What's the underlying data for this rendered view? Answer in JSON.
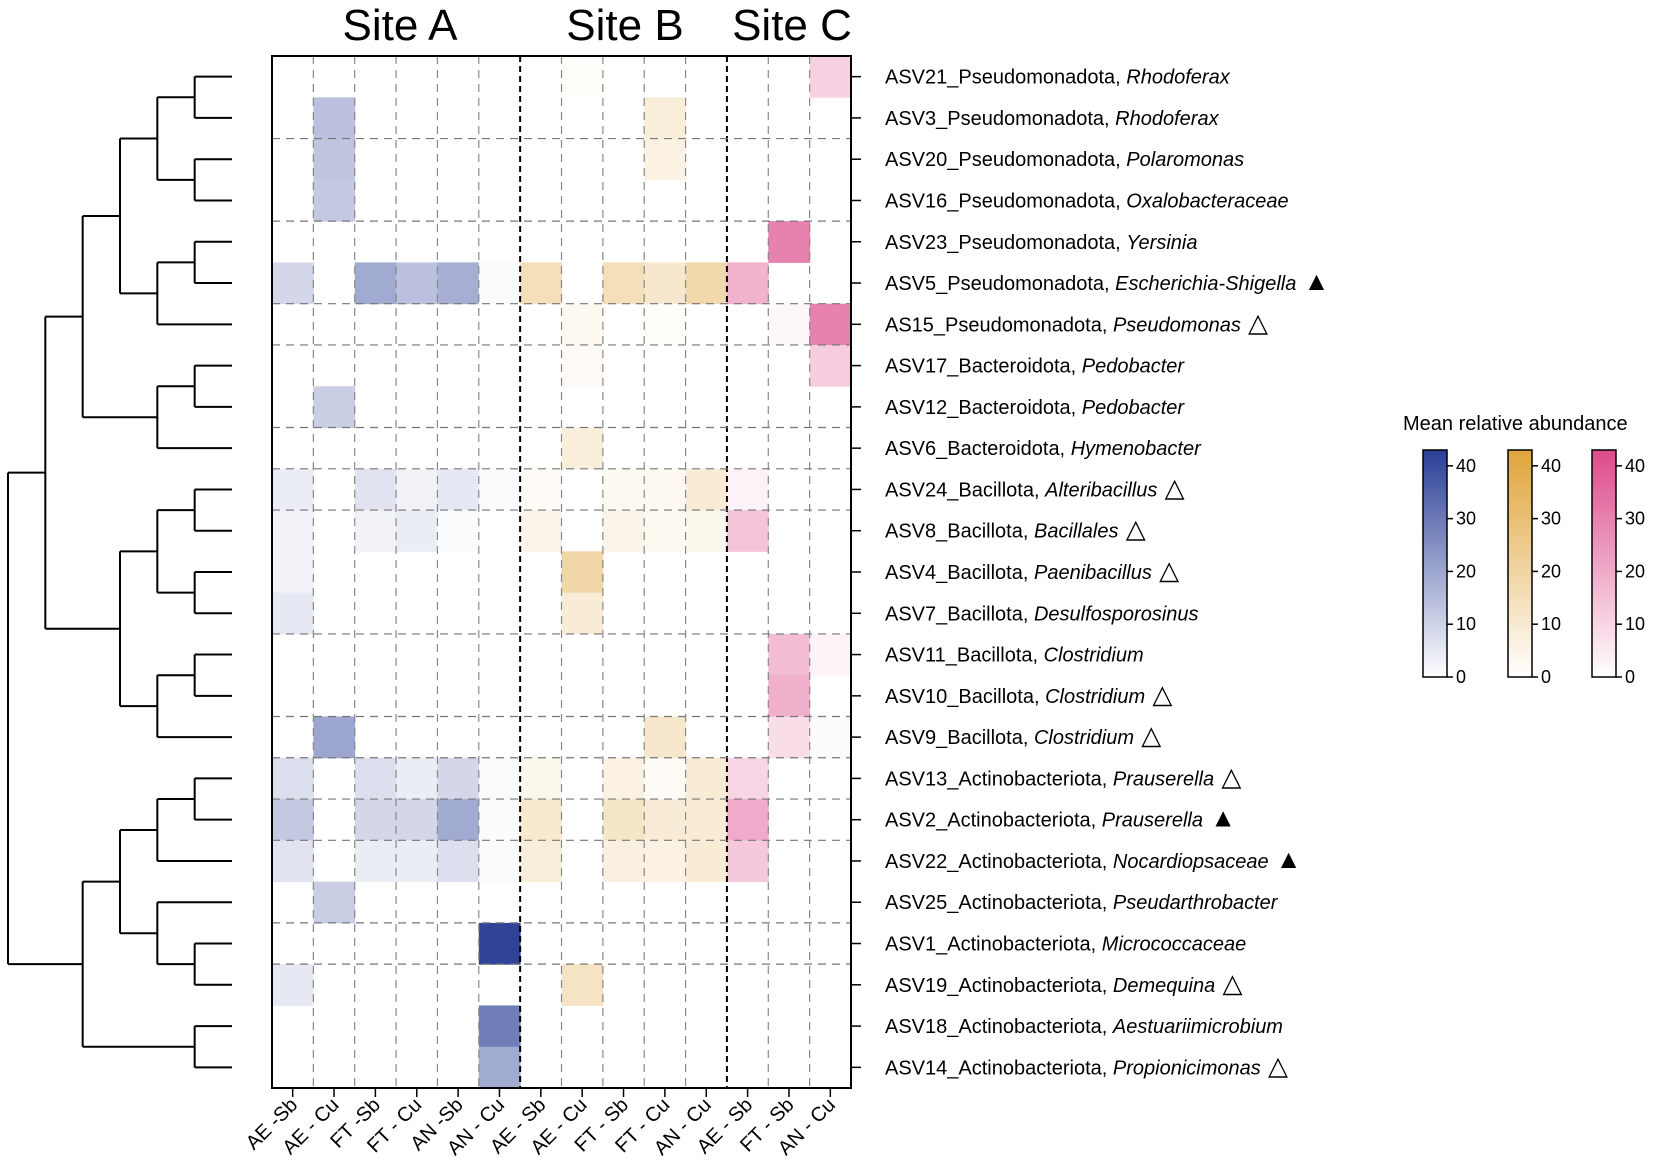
{
  "chart_data": {
    "type": "heatmap",
    "site_titles": [
      "Site A",
      "Site B",
      "Site C"
    ],
    "columns": [
      "AE -Sb",
      "AE - Cu",
      "FT -Sb",
      "FT - Cu",
      "AN -Sb",
      "AN - Cu",
      "AE - Sb",
      "AE - Cu",
      "FT - Sb",
      "FT - Cu",
      "AN - Cu",
      "AE - Sb",
      "FT - Sb",
      "AN - Cu"
    ],
    "column_site": [
      "A",
      "A",
      "A",
      "A",
      "A",
      "A",
      "B",
      "B",
      "B",
      "B",
      "B",
      "C",
      "C",
      "C"
    ],
    "rows": [
      {
        "id": "ASV21_Pseudomonadota, ",
        "taxon": "Rhodoferax",
        "marker": ""
      },
      {
        "id": "ASV3_Pseudomonadota, ",
        "taxon": "Rhodoferax",
        "marker": ""
      },
      {
        "id": "ASV20_Pseudomonadota, ",
        "taxon": "Polaromonas",
        "marker": ""
      },
      {
        "id": "ASV16_Pseudomonadota, ",
        "taxon": "Oxalobacteraceae",
        "marker": ""
      },
      {
        "id": "ASV23_Pseudomonadota, ",
        "taxon": "Yersinia",
        "marker": ""
      },
      {
        "id": "ASV5_Pseudomonadota, ",
        "taxon": "Escherichia-Shigella",
        "marker": "▲"
      },
      {
        "id": "AS15_Pseudomonadota, ",
        "taxon": "Pseudomonas",
        "marker": "△"
      },
      {
        "id": "ASV17_Bacteroidota, ",
        "taxon": "Pedobacter",
        "marker": ""
      },
      {
        "id": "ASV12_Bacteroidota, ",
        "taxon": "Pedobacter",
        "marker": ""
      },
      {
        "id": "ASV6_Bacteroidota, ",
        "taxon": "Hymenobacter",
        "marker": ""
      },
      {
        "id": "ASV24_Bacillota, ",
        "taxon": "Alteribacillus",
        "marker": "△"
      },
      {
        "id": "ASV8_Bacillota, ",
        "taxon": "Bacillales",
        "marker": "△"
      },
      {
        "id": "ASV4_Bacillota, ",
        "taxon": "Paenibacillus",
        "marker": "△"
      },
      {
        "id": "ASV7_Bacillota, ",
        "taxon": "Desulfosporosinus",
        "marker": ""
      },
      {
        "id": "ASV11_Bacillota, ",
        "taxon": "Clostridium",
        "marker": ""
      },
      {
        "id": "ASV10_Bacillota, ",
        "taxon": "Clostridium",
        "marker": "△"
      },
      {
        "id": "ASV9_Bacillota, ",
        "taxon": "Clostridium",
        "marker": "△"
      },
      {
        "id": "ASV13_Actinobacteriota, ",
        "taxon": "Prauserella",
        "marker": "△"
      },
      {
        "id": "ASV2_Actinobacteriota, ",
        "taxon": "Prauserella",
        "marker": "▲"
      },
      {
        "id": "ASV22_Actinobacteriota, ",
        "taxon": "Nocardiopsaceae",
        "marker": "▲"
      },
      {
        "id": "ASV25_Actinobacteriota, ",
        "taxon": "Pseudarthrobacter",
        "marker": ""
      },
      {
        "id": "ASV1_Actinobacteriota, ",
        "taxon": "Micrococcaceae",
        "marker": ""
      },
      {
        "id": "ASV19_Actinobacteriota, ",
        "taxon": "Demequina",
        "marker": "△"
      },
      {
        "id": "ASV18_Actinobacteriota, ",
        "taxon": "Aestuariimicrobium",
        "marker": ""
      },
      {
        "id": "ASV14_Actinobacteriota, ",
        "taxon": "Propionicimonas",
        "marker": "△"
      }
    ],
    "values": [
      [
        0,
        0,
        0,
        0,
        0,
        0,
        0,
        1,
        0,
        0,
        0,
        0,
        0,
        11
      ],
      [
        0,
        14,
        0,
        0,
        0,
        0,
        0,
        0,
        0,
        8,
        0,
        0,
        0,
        0
      ],
      [
        0,
        13,
        0,
        0,
        0,
        0,
        0,
        0,
        0,
        6,
        0,
        0,
        0,
        0
      ],
      [
        0,
        12,
        0,
        0,
        0,
        0,
        0,
        0,
        0,
        0,
        0,
        0,
        0,
        0
      ],
      [
        0,
        0,
        0,
        0,
        0,
        0,
        0,
        0,
        0,
        0,
        0,
        0,
        30,
        0
      ],
      [
        9,
        0,
        19,
        14,
        18,
        1,
        15,
        0,
        15,
        11,
        18,
        18,
        0,
        0
      ],
      [
        0,
        0,
        0,
        0,
        0,
        0,
        0,
        3,
        0,
        1,
        0,
        0,
        2,
        30
      ],
      [
        0,
        0,
        0,
        0,
        0,
        0,
        0,
        2,
        0,
        0,
        0,
        0,
        0,
        12
      ],
      [
        0,
        11,
        0,
        0,
        0,
        0,
        0,
        0,
        0,
        0,
        0,
        0,
        0,
        0
      ],
      [
        0,
        0,
        0,
        0,
        0,
        0,
        0,
        8,
        0,
        0,
        0,
        0,
        0,
        0
      ],
      [
        4,
        0,
        6,
        3,
        5,
        1,
        2,
        0,
        3,
        3,
        9,
        3,
        0,
        0
      ],
      [
        3,
        0,
        3,
        4,
        1,
        0,
        5,
        0,
        5,
        3,
        4,
        14,
        0,
        0
      ],
      [
        3,
        0,
        0,
        0,
        0,
        0,
        0,
        19,
        0,
        0,
        0,
        0,
        0,
        0
      ],
      [
        5,
        0,
        0,
        0,
        0,
        0,
        0,
        9,
        0,
        0,
        0,
        0,
        0,
        0
      ],
      [
        0,
        0,
        0,
        0,
        0,
        0,
        0,
        0,
        0,
        0,
        0,
        0,
        16,
        3
      ],
      [
        0,
        0,
        0,
        0,
        0,
        0,
        0,
        0,
        0,
        0,
        0,
        0,
        19,
        0
      ],
      [
        0,
        20,
        0,
        0,
        0,
        0,
        0,
        0,
        0,
        11,
        0,
        0,
        8,
        1
      ],
      [
        7,
        0,
        7,
        4,
        9,
        1,
        4,
        0,
        6,
        2,
        9,
        10,
        0,
        0
      ],
      [
        12,
        0,
        9,
        9,
        19,
        1,
        10,
        0,
        12,
        9,
        9,
        20,
        0,
        0
      ],
      [
        6,
        0,
        4,
        4,
        7,
        1,
        8,
        0,
        7,
        6,
        9,
        13,
        0,
        0
      ],
      [
        0,
        11,
        0,
        0,
        0,
        0,
        0,
        0,
        0,
        0,
        0,
        0,
        0,
        0
      ],
      [
        0,
        0,
        0,
        0,
        0,
        42,
        0,
        0,
        0,
        0,
        0,
        0,
        0,
        0
      ],
      [
        5,
        0,
        0,
        0,
        0,
        0,
        0,
        13,
        0,
        0,
        0,
        0,
        0,
        0
      ],
      [
        0,
        0,
        0,
        0,
        0,
        29,
        0,
        0,
        0,
        0,
        0,
        0,
        0,
        0
      ],
      [
        0,
        0,
        0,
        0,
        0,
        19,
        0,
        0,
        0,
        0,
        0,
        0,
        0,
        0
      ]
    ],
    "row_separators_after": [
      1,
      3,
      5,
      6,
      8,
      9,
      10,
      13,
      15,
      16,
      17,
      18,
      20,
      21
    ],
    "dendrogram": [
      {
        "a": 0,
        "b": 1,
        "h": 1
      },
      {
        "a": 2,
        "b": 3,
        "h": 1
      },
      {
        "a": 7,
        "b": 8,
        "h": 1
      },
      {
        "a": 10,
        "b": 11,
        "h": 1
      },
      {
        "a": 12,
        "b": 13,
        "h": 1
      },
      {
        "a": 14,
        "b": 15,
        "h": 1
      },
      {
        "a": 17,
        "b": 18,
        "h": 1
      },
      {
        "a": 21,
        "b": 22,
        "h": 1
      },
      {
        "a": 23,
        "b": 24,
        "h": 1
      },
      {
        "a": 4,
        "b": 5,
        "h": 1
      },
      {
        "a": "0-1",
        "b": "2-3",
        "h": 2
      },
      {
        "a": "4-5",
        "b": 6,
        "h": 2
      },
      {
        "a": "7-8",
        "b": 9,
        "h": 2
      },
      {
        "a": "10-11",
        "b": "12-13",
        "h": 2
      },
      {
        "a": "14-15",
        "b": 16,
        "h": 2
      },
      {
        "a": "17-18",
        "b": 19,
        "h": 2
      },
      {
        "a": 20,
        "b": "21-22",
        "h": 2
      },
      {
        "a": "0-3",
        "b": "4-6",
        "h": 3
      },
      {
        "a": "10-13",
        "b": "14-16",
        "h": 3
      },
      {
        "a": "17-19",
        "b": "20-22",
        "h": 3
      },
      {
        "a": "0-6",
        "b": "7-9",
        "h": 4
      },
      {
        "a": "17-22",
        "b": "23-24",
        "h": 4
      },
      {
        "a": "0-9",
        "b": "10-16",
        "h": 5
      },
      {
        "a": "0-16",
        "b": "17-24",
        "h": 6
      }
    ],
    "legend": {
      "title": "Mean relative abundance",
      "ticks": [
        0,
        10,
        20,
        30,
        40
      ],
      "range": [
        0,
        43
      ],
      "scales": [
        {
          "site": "A",
          "low": "#ffffff",
          "high": "#2b3f96"
        },
        {
          "site": "B",
          "low": "#ffffff",
          "high": "#e0a43a"
        },
        {
          "site": "C",
          "low": "#ffffff",
          "high": "#dd4a8a"
        }
      ]
    }
  }
}
